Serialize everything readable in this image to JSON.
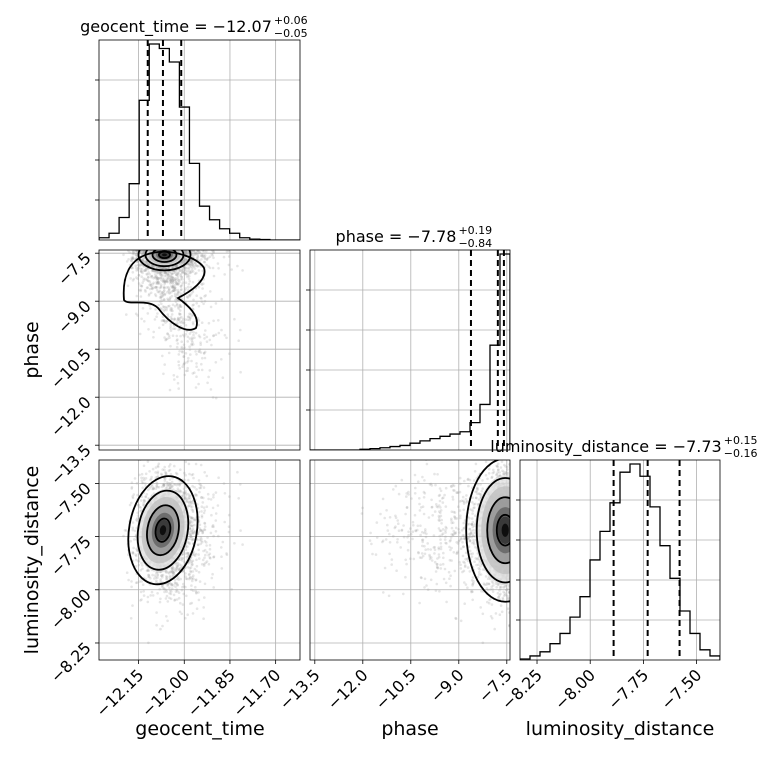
{
  "chart_data": {
    "type": "corner",
    "parameters": [
      {
        "name": "geocent_time",
        "label": "geocent_time",
        "title": {
          "prefix": "geocent_time = −12.07",
          "sup": "+0.06",
          "sub": "−0.05"
        },
        "range": [
          -12.28,
          -11.62
        ],
        "ticks": [
          "−12.15",
          "−12.00",
          "−11.85",
          "−11.70"
        ],
        "tick_values": [
          -12.15,
          -12.0,
          -11.85,
          -11.7
        ],
        "quantiles": [
          -12.12,
          -12.07,
          -12.01
        ],
        "hist": {
          "edges": [
            -12.28,
            -12.247,
            -12.214,
            -12.181,
            -12.148,
            -12.115,
            -12.082,
            -12.049,
            -12.016,
            -11.983,
            -11.95,
            -11.917,
            -11.884,
            -11.851,
            -11.818,
            -11.785,
            -11.752,
            -11.719,
            -11.686,
            -11.653,
            -11.62
          ],
          "counts": [
            1,
            3,
            10,
            25,
            62,
            87,
            85,
            79,
            59,
            34,
            15,
            9,
            5,
            3,
            1,
            0.4,
            0.2,
            0,
            0,
            0
          ]
        }
      },
      {
        "name": "phase",
        "label": "phase",
        "title": {
          "prefix": "phase = −7.78",
          "sup": "+0.19",
          "sub": "−0.84"
        },
        "range": [
          -13.65,
          -7.4
        ],
        "ticks": [
          "−13.5",
          "−12.0",
          "−10.5",
          "−9.0",
          "−7.5"
        ],
        "tick_values": [
          -13.5,
          -12.0,
          -10.5,
          -9.0,
          -7.5
        ],
        "quantiles": [
          -8.62,
          -7.78,
          -7.59
        ],
        "hist": {
          "edges": [
            -13.65,
            -13.3375,
            -13.025,
            -12.7125,
            -12.4,
            -12.0875,
            -11.775,
            -11.4625,
            -11.15,
            -10.8375,
            -10.525,
            -10.2125,
            -9.9,
            -9.5875,
            -9.275,
            -8.9625,
            -8.65,
            -8.3375,
            -8.025,
            -7.7125,
            -7.4
          ],
          "counts": [
            0,
            0,
            0,
            0,
            0,
            0.3,
            0.6,
            1,
            1.5,
            2,
            3,
            4,
            5,
            6,
            7,
            8,
            12,
            20,
            46,
            86
          ]
        }
      },
      {
        "name": "luminosity_distance",
        "label": "luminosity_distance",
        "title": {
          "prefix": "luminosity_distance = −7.73",
          "sup": "+0.15",
          "sub": "−0.16"
        },
        "range": [
          -8.33,
          -7.39
        ],
        "ticks": [
          "−8.25",
          "−8.00",
          "−7.75",
          "−7.50"
        ],
        "tick_values": [
          -8.25,
          -8.0,
          -7.75,
          -7.5
        ],
        "quantiles": [
          -7.89,
          -7.73,
          -7.58
        ],
        "hist": {
          "edges": [
            -8.33,
            -8.283,
            -8.236,
            -8.189,
            -8.142,
            -8.095,
            -8.048,
            -8.001,
            -7.954,
            -7.907,
            -7.86,
            -7.813,
            -7.766,
            -7.719,
            -7.672,
            -7.625,
            -7.578,
            -7.531,
            -7.484,
            -7.437,
            -7.39
          ],
          "counts": [
            0.5,
            2,
            4,
            8,
            13,
            21,
            31,
            49,
            63,
            77,
            92,
            96,
            90,
            75,
            56,
            40,
            24,
            13,
            5,
            2
          ]
        }
      }
    ],
    "scatter_style": {
      "color": "#9a9a9a",
      "alpha": 0.25
    },
    "grid": true
  }
}
